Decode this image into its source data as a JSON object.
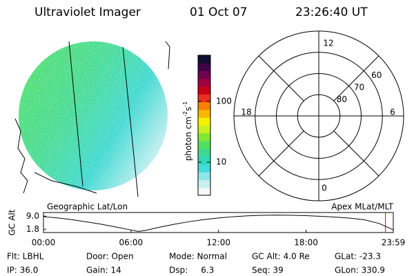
{
  "header": {
    "title": "Ultraviolet Imager",
    "date": "01 Oct 07",
    "time": "23:26:40 UT"
  },
  "colorbar": {
    "label": [
      "photon cm",
      "-2",
      "s",
      "-1"
    ],
    "scale": "log",
    "lim": [
      2.85,
      575
    ],
    "ticks": [
      10,
      100
    ],
    "colors": [
      "#f4f8f8",
      "#c8eef0",
      "#8ee6e6",
      "#40dcd8",
      "#2ed8b8",
      "#3ed890",
      "#50e060",
      "#80e830",
      "#c8f020",
      "#f8f000",
      "#f8b800",
      "#f88000",
      "#e83020",
      "#c80018",
      "#a00040",
      "#700050",
      "#400048",
      "#101030"
    ]
  },
  "polar": {
    "mlt_ticks": [
      12,
      18,
      6,
      0
    ],
    "lat_ticks": [
      60,
      70,
      80
    ],
    "lat_lim": [
      90,
      50
    ]
  },
  "alt_plot": {
    "title_left": "Geographic Lat/Lon",
    "title_right": "Apex MLat/MLT",
    "ylabel": "GC Alt",
    "ylim": [
      0,
      11
    ],
    "yticks": [
      {
        "value": 9,
        "label": "9.0"
      },
      1.8
    ],
    "xlim": [
      0,
      23.98
    ],
    "xticks": [
      {
        "value": 0,
        "label": "00:00"
      },
      {
        "value": 6,
        "label": "06:00"
      },
      {
        "value": 12,
        "label": "12:00"
      },
      {
        "value": 18,
        "label": "18:00"
      },
      {
        "value": 23.98,
        "label": "23:59"
      }
    ],
    "x": [
      0,
      1,
      2,
      3,
      4,
      5,
      6,
      6.5,
      7,
      8,
      9,
      10,
      11,
      12,
      13,
      14,
      15,
      16,
      17,
      18,
      19,
      20,
      21,
      22,
      23,
      23.98
    ],
    "values": [
      8.7,
      8.0,
      7.0,
      5.8,
      4.5,
      3.0,
      1.4,
      0.6,
      1.2,
      3.0,
      4.6,
      6.0,
      7.1,
      8.0,
      8.7,
      9.2,
      9.5,
      9.6,
      9.5,
      9.3,
      8.9,
      8.5,
      7.9,
      7.0,
      5.0,
      1.5
    ],
    "color": "#000000",
    "marker": 23.44,
    "marker_color": "#e00000"
  },
  "footer": [
    [
      "Flt: LBHL",
      "Door: Open",
      "Mode: Normal",
      "GC Alt: 4.0 Re",
      "GLat: -23.3"
    ],
    [
      "IP: 36.0",
      "Gain: 14",
      "Dsp:     6.3",
      "Seq: 39",
      "GLon: 330.9"
    ]
  ]
}
